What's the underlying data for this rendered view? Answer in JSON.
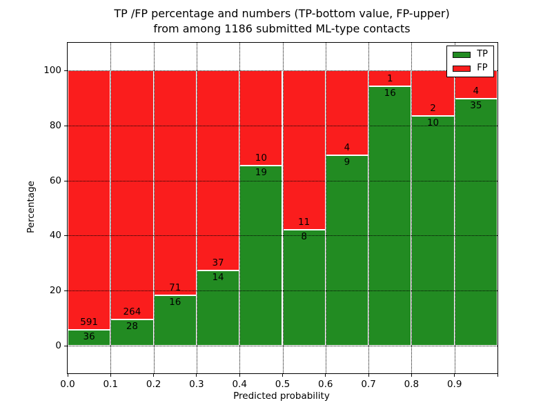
{
  "title": {
    "line1": "TP /FP percentage and numbers (TP-bottom value, FP-upper)",
    "line2": "from among 1186 submitted ML-type contacts"
  },
  "y_axis": {
    "label": "Percentage"
  },
  "x_axis": {
    "label": "Predicted probability",
    "tick_labels": [
      "0.0",
      "0.1",
      "0.2",
      "0.3",
      "0.4",
      "0.5",
      "0.6",
      "0.7",
      "0.8",
      "0.9"
    ]
  },
  "legend": {
    "items": [
      {
        "label": "TP",
        "color": "#228b22"
      },
      {
        "label": "FP",
        "color": "#fa1d1d"
      }
    ]
  },
  "chart_data": {
    "type": "bar",
    "stacked": true,
    "normalized": "percent",
    "title": "TP /FP percentage and numbers (TP-bottom value, FP-upper) from among 1186 submitted ML-type contacts",
    "xlabel": "Predicted probability",
    "ylabel": "Percentage",
    "total_contacts": 1186,
    "bin_edges": [
      0.0,
      0.1,
      0.2,
      0.3,
      0.4,
      0.5,
      0.6,
      0.7,
      0.8,
      0.9,
      1.0
    ],
    "categories": [
      "0.0",
      "0.1",
      "0.2",
      "0.3",
      "0.4",
      "0.5",
      "0.6",
      "0.7",
      "0.8",
      "0.9"
    ],
    "series": [
      {
        "name": "TP",
        "color": "#228b22",
        "counts": [
          36,
          28,
          16,
          14,
          19,
          8,
          9,
          16,
          10,
          35
        ],
        "percent": [
          5.74,
          9.59,
          18.39,
          27.45,
          65.52,
          42.11,
          69.23,
          94.12,
          83.33,
          89.74
        ]
      },
      {
        "name": "FP",
        "color": "#fa1d1d",
        "counts": [
          591,
          264,
          71,
          37,
          10,
          11,
          4,
          1,
          2,
          4
        ],
        "percent": [
          94.26,
          90.41,
          81.61,
          72.55,
          34.48,
          57.89,
          30.77,
          5.88,
          16.67,
          10.26
        ]
      }
    ],
    "ylim": [
      -10,
      110
    ],
    "yticks": [
      0,
      20,
      40,
      60,
      80,
      100
    ],
    "xticks": [
      0.0,
      0.1,
      0.2,
      0.3,
      0.4,
      0.5,
      0.6,
      0.7,
      0.8,
      0.9
    ],
    "grid": "dotted",
    "legend_position": "upper right",
    "bar_edge_color": "#ffffff"
  }
}
